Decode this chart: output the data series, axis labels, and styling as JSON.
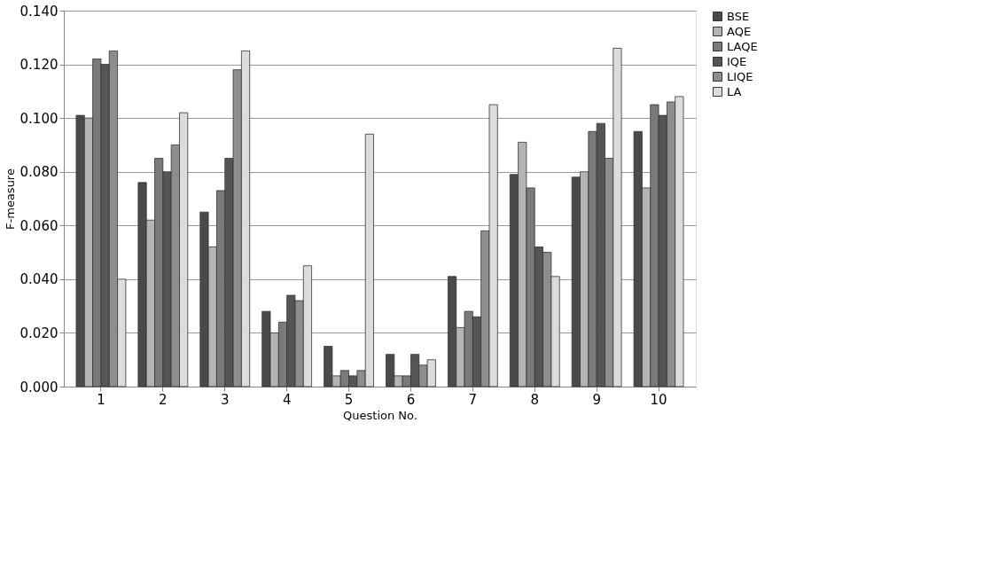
{
  "chart_data": {
    "type": "bar",
    "xlabel": "Question No.",
    "ylabel": "F-measure",
    "categories": [
      "1",
      "2",
      "3",
      "4",
      "5",
      "6",
      "7",
      "8",
      "9",
      "10"
    ],
    "series": [
      {
        "name": "BSE",
        "color": "#4a4a4a",
        "values": [
          0.101,
          0.076,
          0.065,
          0.028,
          0.015,
          0.012,
          0.041,
          0.079,
          0.078,
          0.095
        ]
      },
      {
        "name": "AQE",
        "color": "#b4b4b4",
        "values": [
          0.1,
          0.062,
          0.052,
          0.02,
          0.004,
          0.004,
          0.022,
          0.091,
          0.08,
          0.074
        ]
      },
      {
        "name": "LAQE",
        "color": "#7a7a7a",
        "values": [
          0.122,
          0.085,
          0.073,
          0.024,
          0.006,
          0.004,
          0.028,
          0.074,
          0.095,
          0.105
        ]
      },
      {
        "name": "IQE",
        "color": "#555555",
        "values": [
          0.12,
          0.08,
          0.085,
          0.034,
          0.004,
          0.012,
          0.026,
          0.052,
          0.098,
          0.101
        ]
      },
      {
        "name": "LIQE",
        "color": "#8e8e8e",
        "values": [
          0.125,
          0.09,
          0.118,
          0.032,
          0.006,
          0.008,
          0.058,
          0.05,
          0.085,
          0.106
        ]
      },
      {
        "name": "LA",
        "color": "#dcdcdc",
        "values": [
          0.04,
          0.102,
          0.125,
          0.045,
          0.094,
          0.01,
          0.105,
          0.041,
          0.126,
          0.108
        ]
      }
    ],
    "ylim": [
      0,
      0.14
    ],
    "yticks": [
      {
        "value": 0,
        "label": "0.000"
      },
      {
        "value": 0.02,
        "label": "0.020"
      },
      {
        "value": 0.04,
        "label": "0.040"
      },
      {
        "value": 0.06,
        "label": "0.060"
      },
      {
        "value": 0.08,
        "label": "0.080"
      },
      {
        "value": 0.1,
        "label": "0.100"
      },
      {
        "value": 0.12,
        "label": "0.120"
      },
      {
        "value": 0.14,
        "label": "0.140"
      }
    ],
    "grid": "y",
    "legend": "right"
  }
}
